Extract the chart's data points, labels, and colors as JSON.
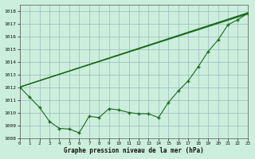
{
  "title": "Graphe pression niveau de la mer (hPa)",
  "background_color": "#cceedd",
  "grid_color": "#99bbbb",
  "line_color": "#1a6b1a",
  "xlim": [
    0,
    23
  ],
  "ylim": [
    1008,
    1018.5
  ],
  "yticks": [
    1008,
    1009,
    1010,
    1011,
    1012,
    1013,
    1014,
    1015,
    1016,
    1017,
    1018
  ],
  "xticks": [
    0,
    1,
    2,
    3,
    4,
    5,
    6,
    7,
    8,
    9,
    10,
    11,
    12,
    13,
    14,
    15,
    16,
    17,
    18,
    19,
    20,
    21,
    22,
    23
  ],
  "data_line": {
    "x": [
      0,
      1,
      2,
      3,
      4,
      5,
      6,
      7,
      8,
      9,
      10,
      11,
      12,
      13,
      14,
      15,
      16,
      17,
      18,
      19,
      20,
      21,
      22,
      23
    ],
    "y": [
      1012.0,
      1011.2,
      1010.4,
      1009.3,
      1008.75,
      1008.7,
      1008.4,
      1009.7,
      1009.6,
      1010.3,
      1010.2,
      1010.0,
      1009.9,
      1009.9,
      1009.6,
      1010.8,
      1011.7,
      1012.5,
      1013.6,
      1014.8,
      1015.7,
      1016.9,
      1017.3,
      1017.8
    ]
  },
  "trend_lines": [
    {
      "x": [
        0,
        23
      ],
      "y": [
        1012.0,
        1017.75
      ]
    },
    {
      "x": [
        0,
        23
      ],
      "y": [
        1012.0,
        1017.8
      ]
    },
    {
      "x": [
        0,
        23
      ],
      "y": [
        1012.0,
        1017.85
      ]
    }
  ]
}
